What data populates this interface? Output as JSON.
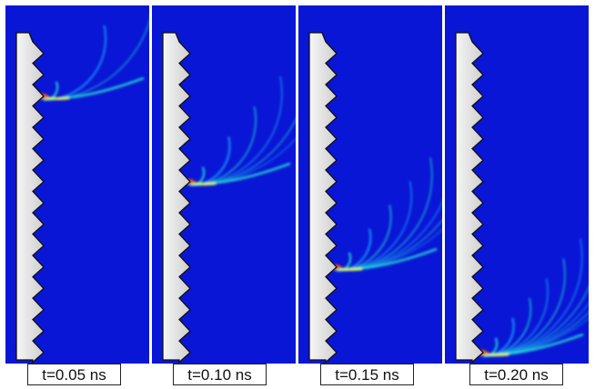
{
  "colors": {
    "background": "#0a16d6",
    "wall": "#e9e9e9",
    "wave_low": "#1aa6ff",
    "wave_mid": "#20e0d0",
    "wave_high": "#f0ff40",
    "wave_peak": "#ff5a10"
  },
  "frames": [
    {
      "label": "t=0.05 ns",
      "tooth_index": 2,
      "ring_count": 3
    },
    {
      "label": "t=0.10 ns",
      "tooth_index": 6,
      "ring_count": 6
    },
    {
      "label": "t=0.15 ns",
      "tooth_index": 10,
      "ring_count": 8
    },
    {
      "label": "t=0.20 ns",
      "tooth_index": 14,
      "ring_count": 10
    }
  ]
}
